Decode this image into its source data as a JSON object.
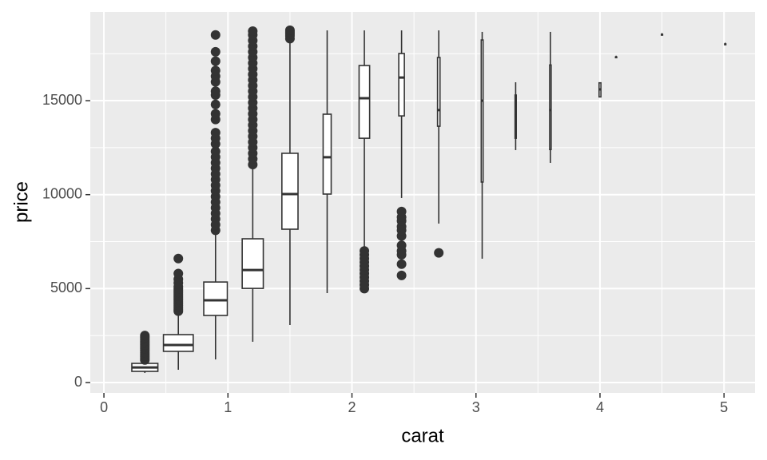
{
  "chart_data": {
    "type": "boxplot",
    "x_label": "carat",
    "y_label": "price",
    "xlim": [
      -0.11,
      5.25
    ],
    "ylim": [
      -552,
      19720
    ],
    "xticks": [
      0,
      1,
      2,
      3,
      4,
      5
    ],
    "yticks": [
      0,
      5000,
      10000,
      15000
    ],
    "xminor": [
      0.5,
      1.5,
      2.5,
      3.5,
      4.5
    ],
    "yminor": [
      2500,
      7500,
      12500,
      17500
    ],
    "grid": true,
    "color": "#333333",
    "fill": "#ffffff",
    "background": "#ebebeb",
    "boxes": [
      {
        "x": 0.33,
        "width": 0.21,
        "whisker_low": 510,
        "q1": 595,
        "median": 800,
        "q3": 1020,
        "whisker_high": 1150,
        "outliers": [
          1200,
          1300,
          1400,
          1500,
          1600,
          1700,
          1800,
          1900,
          2000,
          2100,
          2200,
          2300,
          2400,
          2500
        ]
      },
      {
        "x": 0.6,
        "width": 0.24,
        "whisker_low": 680,
        "q1": 1660,
        "median": 2000,
        "q3": 2550,
        "whisker_high": 3780,
        "outliers": [
          3800,
          3900,
          4000,
          4100,
          4200,
          4300,
          4400,
          4500,
          4600,
          4700,
          4800,
          4900,
          5000,
          5100,
          5300,
          5500,
          5800,
          6600
        ]
      },
      {
        "x": 0.9,
        "width": 0.19,
        "whisker_low": 1230,
        "q1": 3570,
        "median": 4380,
        "q3": 5350,
        "whisker_high": 8030,
        "outliers": [
          8100,
          8400,
          8700,
          9000,
          9300,
          9600,
          9900,
          10200,
          10500,
          10800,
          11100,
          11400,
          11700,
          12000,
          12300,
          12700,
          13000,
          13300,
          14000,
          14300,
          14800,
          15300,
          15500,
          16000,
          16300,
          16600,
          17100,
          17600,
          18500
        ]
      },
      {
        "x": 1.2,
        "width": 0.17,
        "whisker_low": 2170,
        "q1": 5010,
        "median": 5990,
        "q3": 7650,
        "whisker_high": 11500,
        "outliers": [
          11600,
          11900,
          12200,
          12500,
          12800,
          13100,
          13400,
          13700,
          14000,
          14300,
          14600,
          14900,
          15200,
          15500,
          15800,
          16100,
          16400,
          16700,
          17000,
          17300,
          17600,
          17900,
          18200,
          18500,
          18700
        ]
      },
      {
        "x": 1.5,
        "width": 0.13,
        "whisker_low": 3060,
        "q1": 8160,
        "median": 10030,
        "q3": 12200,
        "whisker_high": 18250,
        "outliers": [
          18300,
          18450,
          18550,
          18650,
          18750
        ]
      },
      {
        "x": 1.8,
        "width": 0.065,
        "whisker_low": 4760,
        "q1": 10030,
        "median": 11990,
        "q3": 14280,
        "whisker_high": 18740,
        "outliers": []
      },
      {
        "x": 2.1,
        "width": 0.085,
        "whisker_low": 7100,
        "q1": 13000,
        "median": 15130,
        "q3": 16870,
        "whisker_high": 18740,
        "outliers": [
          5000,
          5200,
          5400,
          5600,
          5800,
          6000,
          6200,
          6400,
          6600,
          6800,
          7000
        ]
      },
      {
        "x": 2.4,
        "width": 0.045,
        "whisker_low": 9820,
        "q1": 14190,
        "median": 16230,
        "q3": 17510,
        "whisker_high": 18740,
        "outliers": [
          5700,
          6300,
          6800,
          7000,
          7300,
          7800,
          8100,
          8300,
          8600,
          8800,
          9100
        ]
      },
      {
        "x": 2.7,
        "width": 0.02,
        "whisker_low": 8460,
        "q1": 13640,
        "median": 14500,
        "q3": 17300,
        "whisker_high": 18740,
        "outliers": [
          6900
        ]
      },
      {
        "x": 3.05,
        "width": 0.015,
        "whisker_low": 6590,
        "q1": 10670,
        "median": 15000,
        "q3": 18230,
        "whisker_high": 18660,
        "outliers": []
      },
      {
        "x": 3.32,
        "width": 0.01,
        "whisker_low": 12370,
        "q1": 13000,
        "median": 14200,
        "q3": 15300,
        "whisker_high": 15980,
        "outliers": []
      },
      {
        "x": 3.6,
        "width": 0.012,
        "whisker_low": 11690,
        "q1": 12400,
        "median": 14500,
        "q3": 16900,
        "whisker_high": 18660,
        "outliers": []
      },
      {
        "x": 4.0,
        "width": 0.015,
        "whisker_low": 15200,
        "q1": 15200,
        "median": 15600,
        "q3": 15950,
        "whisker_high": 15950,
        "outliers": []
      },
      {
        "x": 4.13,
        "width": 0.01,
        "whisker_low": 17330,
        "q1": 17330,
        "median": 17330,
        "q3": 17330,
        "whisker_high": 17330,
        "outliers": []
      },
      {
        "x": 4.5,
        "width": 0.01,
        "whisker_low": 18530,
        "q1": 18530,
        "median": 18530,
        "q3": 18530,
        "whisker_high": 18530,
        "outliers": []
      },
      {
        "x": 5.01,
        "width": 0.01,
        "whisker_low": 18020,
        "q1": 18020,
        "median": 18020,
        "q3": 18020,
        "whisker_high": 18020,
        "outliers": []
      }
    ]
  }
}
